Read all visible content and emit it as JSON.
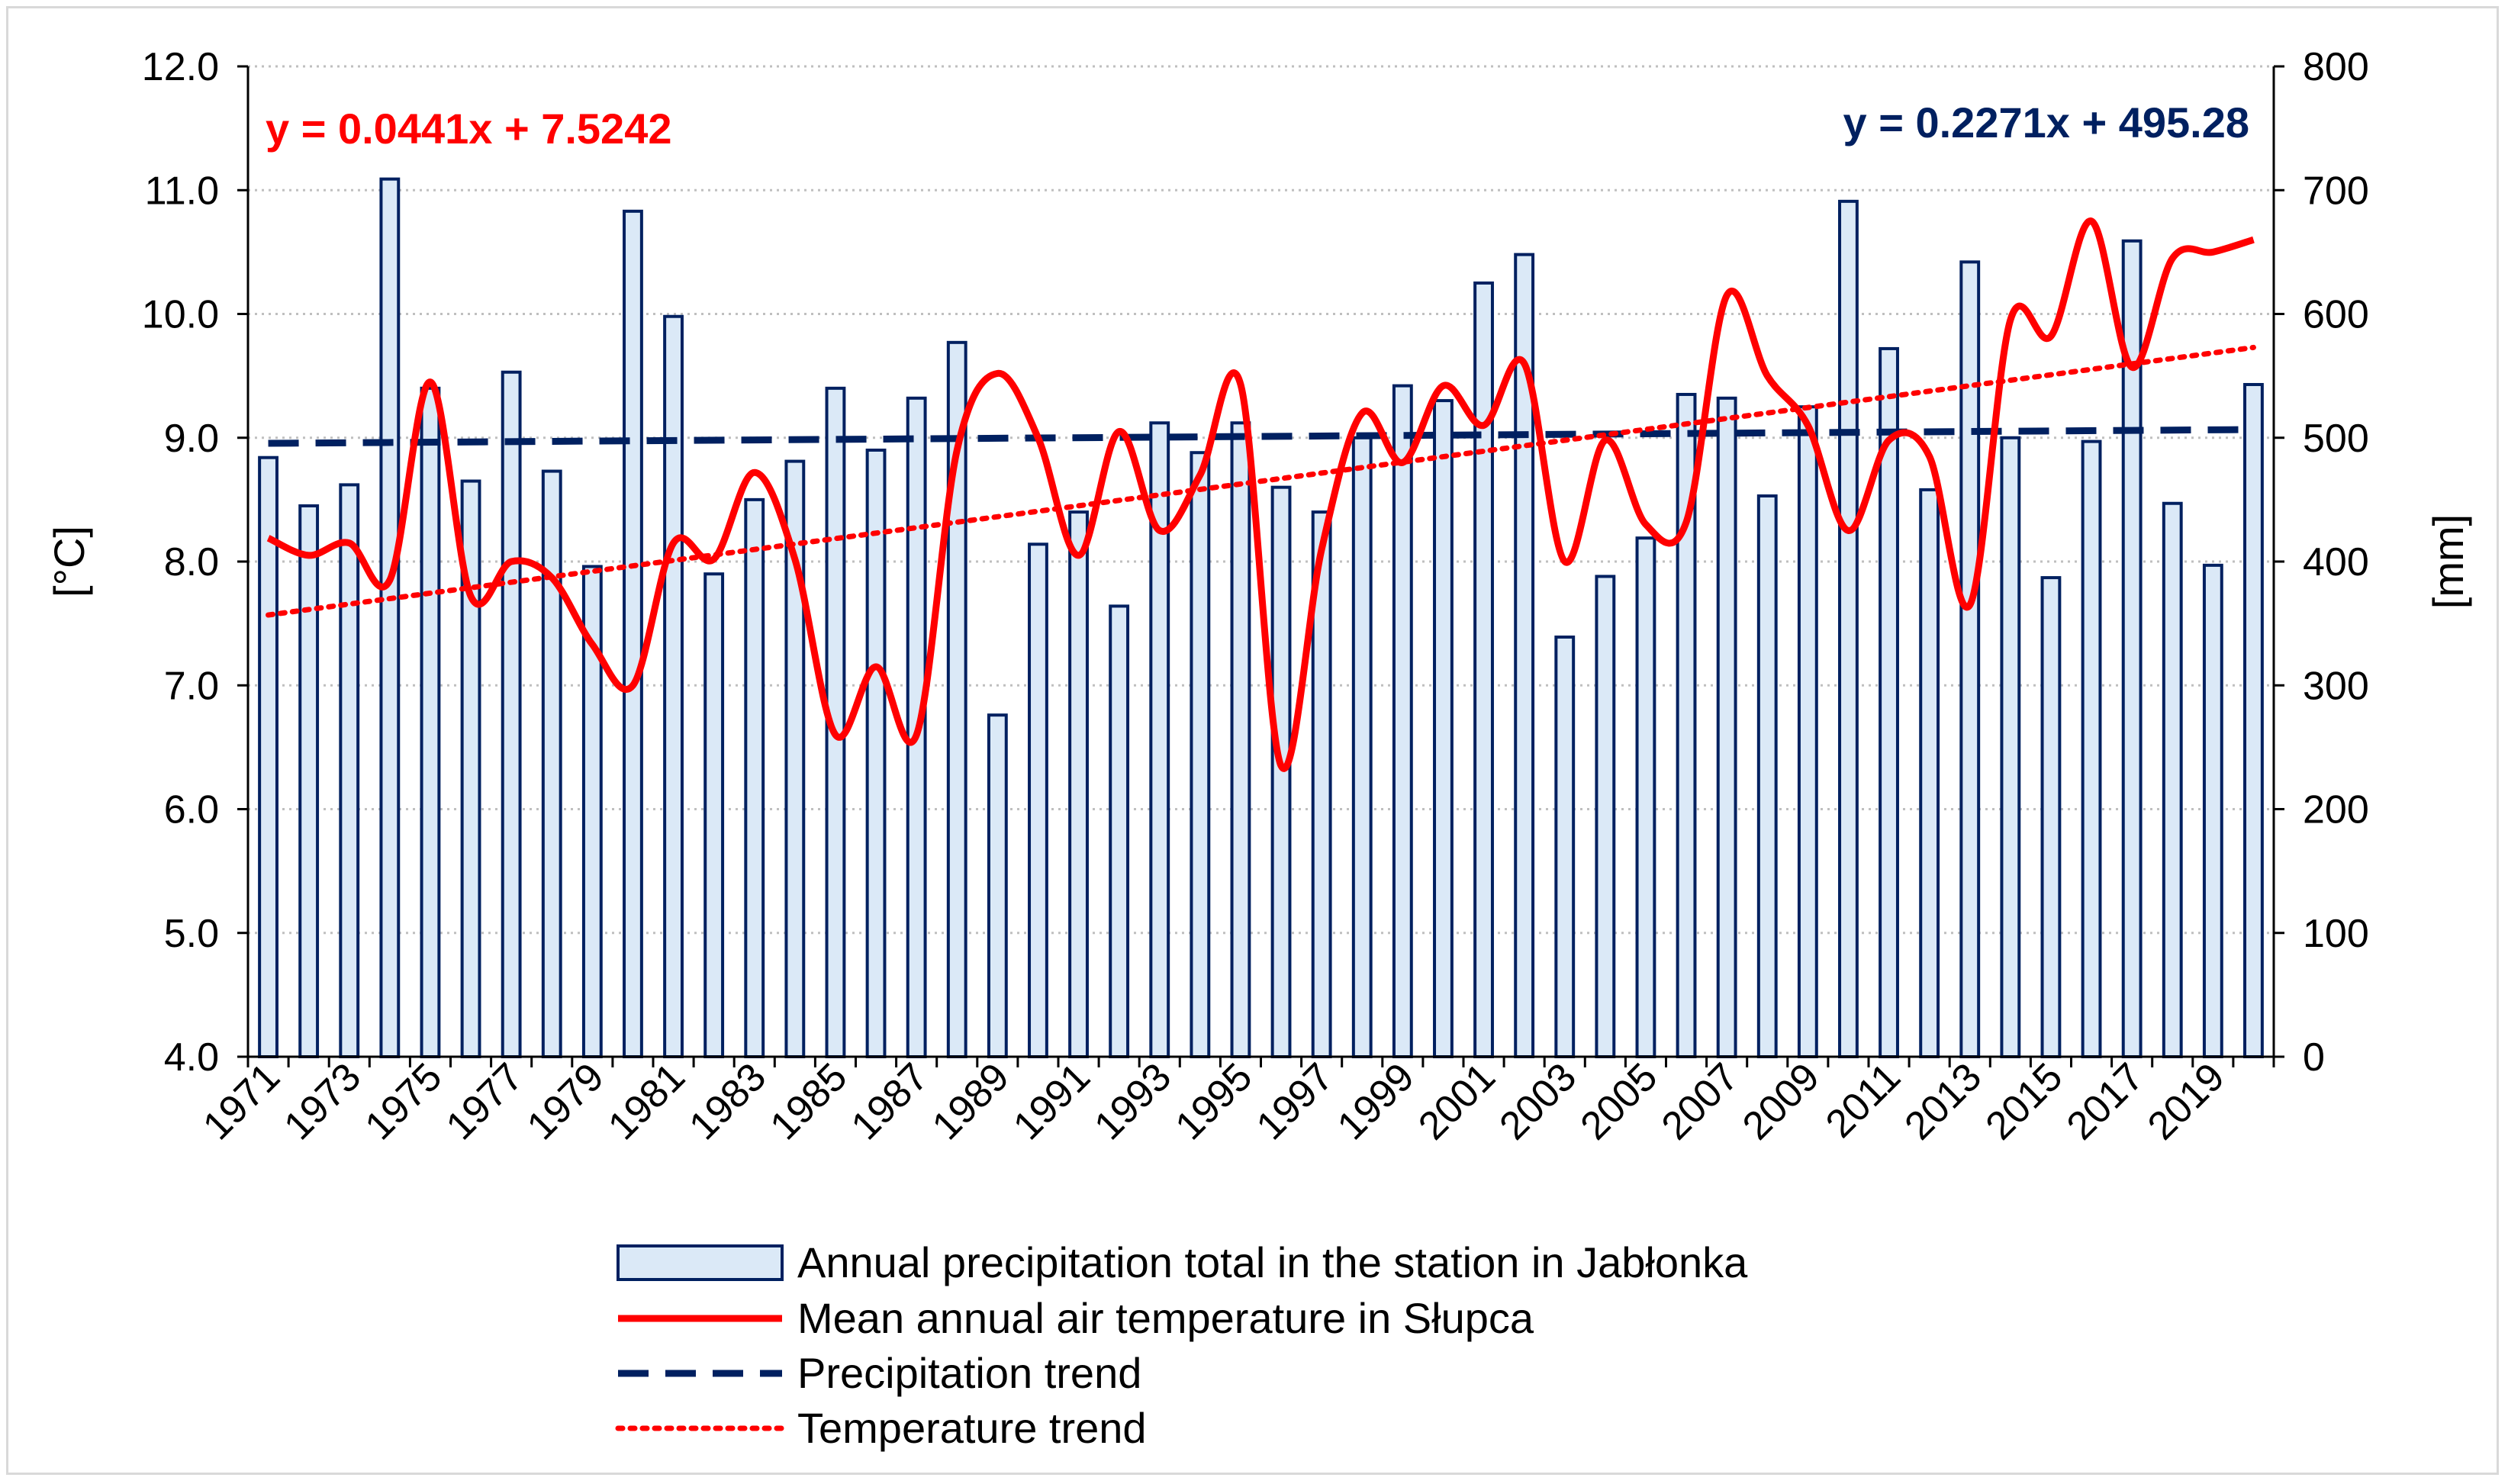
{
  "chart_data": {
    "type": "bar",
    "title": "",
    "years": [
      1971,
      1972,
      1973,
      1974,
      1975,
      1976,
      1977,
      1978,
      1979,
      1980,
      1981,
      1982,
      1983,
      1984,
      1985,
      1986,
      1987,
      1988,
      1989,
      1990,
      1991,
      1992,
      1993,
      1994,
      1995,
      1996,
      1997,
      1998,
      1999,
      2000,
      2001,
      2002,
      2003,
      2004,
      2005,
      2006,
      2007,
      2008,
      2009,
      2010,
      2011,
      2012,
      2013,
      2014,
      2015,
      2016,
      2017,
      2018,
      2019,
      2020
    ],
    "x_tick_labels": [
      "1971",
      "1973",
      "1975",
      "1977",
      "1979",
      "1981",
      "1983",
      "1985",
      "1987",
      "1989",
      "1991",
      "1993",
      "1995",
      "1997",
      "1999",
      "2001",
      "2003",
      "2005",
      "2007",
      "2009",
      "2011",
      "2013",
      "2015",
      "2017",
      "2019"
    ],
    "y_left": {
      "label": "[°C]",
      "ylim": [
        4.0,
        12.0
      ],
      "ticks": [
        "4.0",
        "5.0",
        "6.0",
        "7.0",
        "8.0",
        "9.0",
        "10.0",
        "11.0",
        "12.0"
      ]
    },
    "y_right": {
      "label": "[mm]",
      "ylim": [
        0,
        800
      ],
      "ticks": [
        "0",
        "100",
        "200",
        "300",
        "400",
        "500",
        "600",
        "700",
        "800"
      ]
    },
    "series": [
      {
        "name": "Annual precipitation total in the station in Jabłonka",
        "type": "bar",
        "axis": "right",
        "color": "#dbe9f7",
        "edge": "#002060",
        "values": [
          484,
          445,
          462,
          709,
          540,
          465,
          553,
          473,
          396,
          683,
          598,
          390,
          450,
          481,
          540,
          490,
          532,
          577,
          276,
          414,
          440,
          364,
          512,
          488,
          512,
          460,
          440,
          500,
          542,
          530,
          625,
          648,
          339,
          388,
          419,
          535,
          532,
          453,
          525,
          691,
          572,
          458,
          642,
          500,
          387,
          497,
          659,
          447,
          397,
          543
        ]
      },
      {
        "name": "Mean annual air temperature in Słupca",
        "type": "line",
        "axis": "left",
        "color": "#ff0000",
        "values": [
          8.19,
          8.05,
          8.15,
          7.85,
          9.45,
          7.72,
          8.0,
          7.87,
          7.33,
          7.0,
          8.15,
          8.02,
          8.72,
          8.02,
          6.6,
          7.15,
          6.6,
          8.9,
          9.52,
          9.0,
          8.05,
          9.05,
          8.25,
          8.7,
          9.43,
          6.35,
          8.1,
          9.2,
          8.8,
          9.42,
          9.1,
          9.6,
          8.0,
          8.98,
          8.3,
          8.32,
          10.15,
          9.5,
          9.1,
          8.25,
          8.98,
          8.85,
          7.65,
          9.95,
          9.82,
          10.75,
          9.57,
          10.45,
          10.5,
          10.6
        ]
      },
      {
        "name": "Precipitation trend",
        "type": "line",
        "axis": "right",
        "color": "#002060",
        "equation": "y = 0.2271x + 495.28",
        "slope": 0.2271,
        "intercept": 495.28
      },
      {
        "name": "Temperature trend",
        "type": "line",
        "axis": "left",
        "color": "#ff0000",
        "equation": "y = 0.0441x + 7.5242",
        "slope": 0.0441,
        "intercept": 7.5242
      }
    ],
    "legend_position": "bottom",
    "grid": "horizontal dotted"
  }
}
